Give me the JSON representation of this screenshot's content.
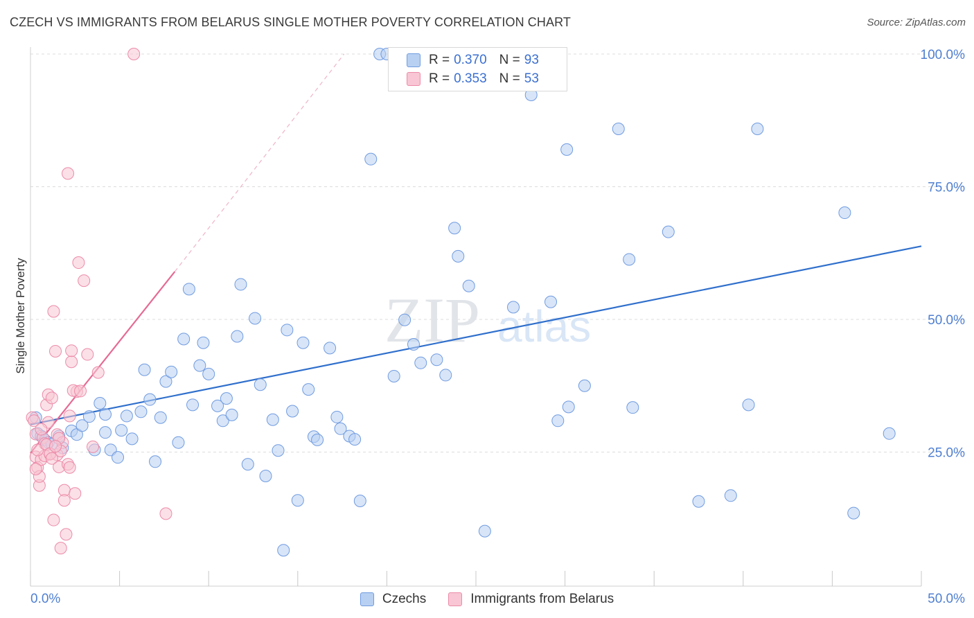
{
  "title": "CZECH VS IMMIGRANTS FROM BELARUS SINGLE MOTHER POVERTY CORRELATION CHART",
  "source": "Source: ZipAtlas.com",
  "colors": {
    "blue_fill": "#b8d0f2",
    "blue_stroke": "#6f9be0",
    "blue_line": "#2f6fcc",
    "pink_fill": "#f8c6d4",
    "pink_stroke": "#ec8aa8",
    "pink_line": "#e56a94",
    "grid": "#dcdcdc",
    "tick_text": "#4f7fd1"
  },
  "legend_top": {
    "rows": [
      {
        "r_label": "R =",
        "r_value": "0.370",
        "n_label": "N =",
        "n_value": "93"
      },
      {
        "r_label": "R =",
        "r_value": "0.353",
        "n_label": "N =",
        "n_value": "53"
      }
    ]
  },
  "legend_bottom": [
    "Czechs",
    "Immigrants from Belarus"
  ],
  "chart_data": {
    "type": "scatter",
    "title": "CZECH VS IMMIGRANTS FROM BELARUS SINGLE MOTHER POVERTY CORRELATION CHART",
    "xlabel": "",
    "ylabel": "Single Mother Poverty",
    "xlim": [
      0,
      50
    ],
    "ylim": [
      0,
      100
    ],
    "x_tick_labels": [
      "0.0%",
      "50.0%"
    ],
    "y_ticks": [
      25,
      50,
      75,
      100
    ],
    "y_tick_labels": [
      "25.0%",
      "50.0%",
      "75.0%",
      "100.0%"
    ],
    "grid": true,
    "watermark": "ZIPatlas",
    "series": [
      {
        "name": "Czechs",
        "r": 0.37,
        "n": 93,
        "trend": {
          "x": [
            0,
            50
          ],
          "y": [
            30.2,
            63.8
          ],
          "dashed_ext": false
        },
        "points": [
          [
            0.3,
            31.5
          ],
          [
            0.4,
            28.5
          ],
          [
            0.6,
            28.0
          ],
          [
            0.8,
            27.3
          ],
          [
            1.0,
            26.8
          ],
          [
            1.2,
            26.5
          ],
          [
            1.6,
            28.0
          ],
          [
            1.8,
            25.8
          ],
          [
            2.3,
            29.0
          ],
          [
            2.6,
            28.3
          ],
          [
            2.9,
            30.0
          ],
          [
            3.3,
            31.7
          ],
          [
            3.6,
            25.4
          ],
          [
            3.9,
            34.2
          ],
          [
            4.2,
            28.7
          ],
          [
            4.5,
            25.4
          ],
          [
            4.9,
            24.0
          ],
          [
            5.1,
            29.1
          ],
          [
            5.4,
            31.8
          ],
          [
            5.7,
            27.5
          ],
          [
            6.2,
            32.6
          ],
          [
            6.4,
            40.5
          ],
          [
            6.7,
            34.9
          ],
          [
            7.0,
            23.2
          ],
          [
            7.3,
            31.5
          ],
          [
            7.6,
            38.3
          ],
          [
            7.9,
            40.1
          ],
          [
            8.3,
            26.8
          ],
          [
            8.6,
            46.3
          ],
          [
            8.9,
            55.7
          ],
          [
            9.1,
            33.9
          ],
          [
            9.5,
            41.3
          ],
          [
            9.7,
            45.6
          ],
          [
            10.0,
            39.7
          ],
          [
            10.5,
            33.7
          ],
          [
            10.8,
            30.9
          ],
          [
            11.0,
            35.1
          ],
          [
            11.3,
            32.0
          ],
          [
            11.6,
            46.8
          ],
          [
            11.8,
            56.6
          ],
          [
            12.2,
            22.7
          ],
          [
            12.6,
            50.2
          ],
          [
            12.9,
            37.7
          ],
          [
            13.2,
            20.5
          ],
          [
            13.6,
            31.1
          ],
          [
            13.9,
            25.3
          ],
          [
            14.4,
            48.0
          ],
          [
            14.7,
            32.7
          ],
          [
            15.0,
            15.9
          ],
          [
            15.3,
            45.6
          ],
          [
            15.6,
            36.8
          ],
          [
            15.9,
            27.9
          ],
          [
            16.1,
            27.3
          ],
          [
            16.8,
            44.6
          ],
          [
            17.2,
            31.6
          ],
          [
            17.4,
            29.4
          ],
          [
            17.9,
            28.0
          ],
          [
            18.2,
            27.4
          ],
          [
            18.5,
            15.8
          ],
          [
            19.1,
            80.2
          ],
          [
            19.6,
            100.0
          ],
          [
            20.0,
            100.0
          ],
          [
            20.4,
            39.3
          ],
          [
            21.0,
            49.9
          ],
          [
            21.5,
            45.3
          ],
          [
            21.9,
            41.8
          ],
          [
            22.4,
            100.0
          ],
          [
            22.8,
            42.4
          ],
          [
            23.3,
            39.5
          ],
          [
            23.8,
            67.2
          ],
          [
            24.0,
            61.9
          ],
          [
            24.6,
            56.3
          ],
          [
            25.5,
            10.1
          ],
          [
            27.1,
            52.3
          ],
          [
            28.1,
            92.3
          ],
          [
            29.2,
            53.3
          ],
          [
            29.6,
            30.9
          ],
          [
            30.1,
            82.0
          ],
          [
            30.2,
            33.5
          ],
          [
            31.1,
            37.5
          ],
          [
            33.0,
            85.9
          ],
          [
            33.6,
            61.3
          ],
          [
            33.8,
            33.4
          ],
          [
            35.8,
            66.5
          ],
          [
            37.5,
            15.7
          ],
          [
            39.3,
            16.8
          ],
          [
            40.3,
            33.9
          ],
          [
            40.8,
            85.9
          ],
          [
            45.7,
            70.1
          ],
          [
            46.2,
            13.5
          ],
          [
            48.2,
            28.5
          ],
          [
            4.2,
            32.1
          ],
          [
            14.2,
            6.5
          ]
        ]
      },
      {
        "name": "Immigrants from Belarus",
        "r": 0.353,
        "n": 53,
        "trend": {
          "x": [
            0,
            8.1
          ],
          "y": [
            24.8,
            59.0
          ],
          "dashed_ext": {
            "x": [
              8.1,
              17.6
            ],
            "y": [
              59.0,
              100.0
            ]
          }
        },
        "points": [
          [
            0.1,
            31.5
          ],
          [
            0.2,
            30.9
          ],
          [
            0.3,
            28.4
          ],
          [
            0.3,
            24.1
          ],
          [
            0.4,
            22.1
          ],
          [
            0.5,
            18.7
          ],
          [
            0.5,
            20.4
          ],
          [
            0.6,
            23.6
          ],
          [
            0.7,
            27.7
          ],
          [
            0.8,
            26.6
          ],
          [
            0.8,
            24.3
          ],
          [
            0.9,
            33.9
          ],
          [
            1.0,
            35.8
          ],
          [
            1.0,
            30.6
          ],
          [
            1.1,
            24.6
          ],
          [
            1.2,
            35.2
          ],
          [
            1.3,
            12.2
          ],
          [
            1.3,
            51.5
          ],
          [
            1.4,
            44.0
          ],
          [
            1.5,
            28.3
          ],
          [
            1.5,
            24.5
          ],
          [
            1.6,
            22.2
          ],
          [
            1.7,
            6.9
          ],
          [
            1.8,
            26.8
          ],
          [
            1.9,
            17.8
          ],
          [
            1.9,
            15.9
          ],
          [
            2.0,
            9.5
          ],
          [
            2.1,
            22.7
          ],
          [
            2.1,
            77.5
          ],
          [
            2.2,
            31.8
          ],
          [
            2.3,
            42.0
          ],
          [
            2.3,
            44.1
          ],
          [
            2.5,
            17.2
          ],
          [
            2.6,
            36.4
          ],
          [
            2.7,
            60.7
          ],
          [
            3.0,
            57.3
          ],
          [
            3.2,
            43.4
          ],
          [
            3.5,
            26.0
          ],
          [
            3.8,
            40.0
          ],
          [
            5.8,
            100.0
          ],
          [
            7.6,
            13.4
          ],
          [
            0.4,
            25.4
          ],
          [
            0.6,
            29.3
          ],
          [
            0.9,
            26.4
          ],
          [
            1.1,
            24.7
          ],
          [
            1.2,
            23.8
          ],
          [
            1.6,
            27.6
          ],
          [
            1.7,
            25.2
          ],
          [
            2.2,
            22.1
          ],
          [
            2.4,
            36.6
          ],
          [
            2.8,
            36.5
          ],
          [
            0.3,
            21.8
          ],
          [
            1.4,
            26.1
          ]
        ]
      }
    ]
  }
}
